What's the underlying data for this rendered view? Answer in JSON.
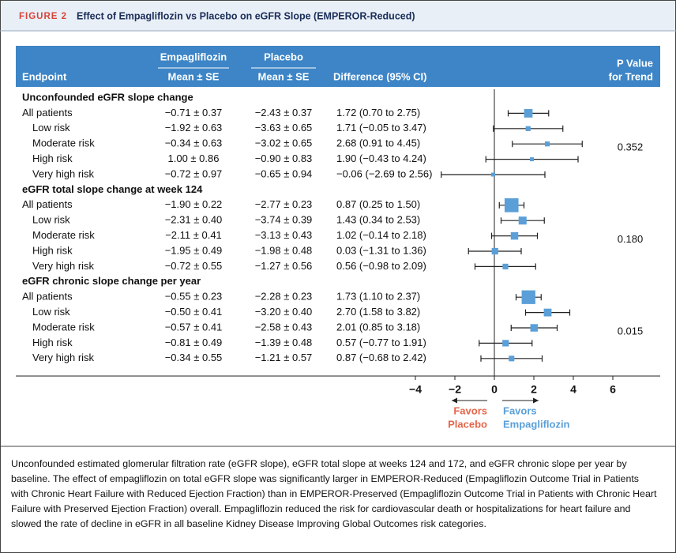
{
  "figure_label": "FIGURE 2",
  "title": "Effect of Empagliflozin vs Placebo on eGFR Slope (EMPEROR-Reduced)",
  "caption": "Unconfounded estimated glomerular filtration rate (eGFR slope), eGFR total slope at weeks 124 and 172, and eGFR chronic slope per year by baseline. The effect of empagliflozin on total eGFR slope was significantly larger in EMPEROR-Reduced (Empagliflozin Outcome Trial in Patients with Chronic Heart Failure with Reduced Ejection Fraction) than in EMPEROR-Preserved (Empagliflozin Outcome Trial in Patients with Chronic Heart Failure with Preserved Ejection Fraction) overall. Empagliflozin reduced the risk for cardiovascular death or hospitalizations for heart failure and slowed the rate of decline in eGFR in all baseline Kidney Disease Improving Global Outcomes risk categories.",
  "chart_data": {
    "type": "forest",
    "headers": {
      "endpoint": "Endpoint",
      "empagliflozin": [
        "Empagliflozin",
        "Mean ± SE"
      ],
      "placebo": [
        "Placebo",
        "Mean ± SE"
      ],
      "difference": "Difference (95% CI)",
      "p_value": [
        "P Value",
        "for Trend"
      ]
    },
    "color": "#5a9fd8",
    "xlim": [
      -4,
      6
    ],
    "xticks": [
      {
        "value": -4,
        "label": "−4"
      },
      {
        "value": -2,
        "label": "−2"
      },
      0,
      2,
      4,
      6
    ],
    "favors_left": [
      "Favors",
      "Placebo"
    ],
    "favors_right": [
      "Favors",
      "Empagliflozin"
    ],
    "groups": [
      {
        "name": "Unconfounded eGFR slope change",
        "p_value": "0.352",
        "rows": [
          {
            "label": "All patients",
            "empagliflozin": "−0.71 ± 0.37",
            "placebo": "−2.43 ± 0.37",
            "value": 1.72,
            "ci": [
              0.7,
              2.75
            ],
            "value_label": "1.72 (0.70 to 2.75)"
          },
          {
            "label": "Low risk",
            "empagliflozin": "−1.92 ± 0.63",
            "placebo": "−3.63 ± 0.65",
            "value": 1.71,
            "ci": [
              -0.05,
              3.47
            ],
            "value_label": "1.71 (−0.05 to 3.47)"
          },
          {
            "label": "Moderate risk",
            "empagliflozin": "−0.34 ± 0.63",
            "placebo": "−3.02 ± 0.65",
            "value": 2.68,
            "ci": [
              0.91,
              4.45
            ],
            "value_label": "2.68 (0.91 to 4.45)"
          },
          {
            "label": "High risk",
            "empagliflozin": "1.00 ± 0.86",
            "placebo": "−0.90 ± 0.83",
            "value": 1.9,
            "ci": [
              -0.43,
              4.24
            ],
            "value_label": "1.90 (−0.43 to 4.24)"
          },
          {
            "label": "Very high risk",
            "empagliflozin": "−0.72 ± 0.97",
            "placebo": "−0.65 ± 0.94",
            "value": -0.06,
            "ci": [
              -2.69,
              2.56
            ],
            "value_label": "−0.06 (−2.69 to 2.56)"
          }
        ]
      },
      {
        "name": "eGFR total slope change at week 124",
        "p_value": "0.180",
        "rows": [
          {
            "label": "All patients",
            "empagliflozin": "−1.90 ± 0.22",
            "placebo": "−2.77 ± 0.23",
            "value": 0.87,
            "ci": [
              0.25,
              1.5
            ],
            "value_label": "0.87 (0.25 to 1.50)"
          },
          {
            "label": "Low risk",
            "empagliflozin": "−2.31 ± 0.40",
            "placebo": "−3.74 ± 0.39",
            "value": 1.43,
            "ci": [
              0.34,
              2.53
            ],
            "value_label": "1.43 (0.34 to 2.53)"
          },
          {
            "label": "Moderate risk",
            "empagliflozin": "−2.11 ± 0.41",
            "placebo": "−3.13 ± 0.43",
            "value": 1.02,
            "ci": [
              -0.14,
              2.18
            ],
            "value_label": "1.02 (−0.14 to 2.18)"
          },
          {
            "label": "High risk",
            "empagliflozin": "−1.95 ± 0.49",
            "placebo": "−1.98 ± 0.48",
            "value": 0.03,
            "ci": [
              -1.31,
              1.36
            ],
            "value_label": "0.03 (−1.31 to 1.36)"
          },
          {
            "label": "Very high risk",
            "empagliflozin": "−0.72 ± 0.55",
            "placebo": "−1.27 ± 0.56",
            "value": 0.56,
            "ci": [
              -0.98,
              2.09
            ],
            "value_label": "0.56 (−0.98 to 2.09)"
          }
        ]
      },
      {
        "name": "eGFR chronic slope change per year",
        "p_value": "0.015",
        "rows": [
          {
            "label": "All patients",
            "empagliflozin": "−0.55 ± 0.23",
            "placebo": "−2.28 ± 0.23",
            "value": 1.73,
            "ci": [
              1.1,
              2.37
            ],
            "value_label": "1.73 (1.10 to 2.37)"
          },
          {
            "label": "Low risk",
            "empagliflozin": "−0.50 ± 0.41",
            "placebo": "−3.20 ± 0.40",
            "value": 2.7,
            "ci": [
              1.58,
              3.82
            ],
            "value_label": "2.70 (1.58 to 3.82)"
          },
          {
            "label": "Moderate risk",
            "empagliflozin": "−0.57 ± 0.41",
            "placebo": "−2.58 ± 0.43",
            "value": 2.01,
            "ci": [
              0.85,
              3.18
            ],
            "value_label": "2.01 (0.85 to 3.18)"
          },
          {
            "label": "High risk",
            "empagliflozin": "−0.81 ± 0.49",
            "placebo": "−1.39 ± 0.48",
            "value": 0.57,
            "ci": [
              -0.77,
              1.91
            ],
            "value_label": "0.57 (−0.77 to 1.91)"
          },
          {
            "label": "Very high risk",
            "empagliflozin": "−0.34 ± 0.55",
            "placebo": "−1.21 ± 0.57",
            "value": 0.87,
            "ci": [
              -0.68,
              2.42
            ],
            "value_label": "0.87 (−0.68 to 2.42)"
          }
        ]
      }
    ]
  }
}
